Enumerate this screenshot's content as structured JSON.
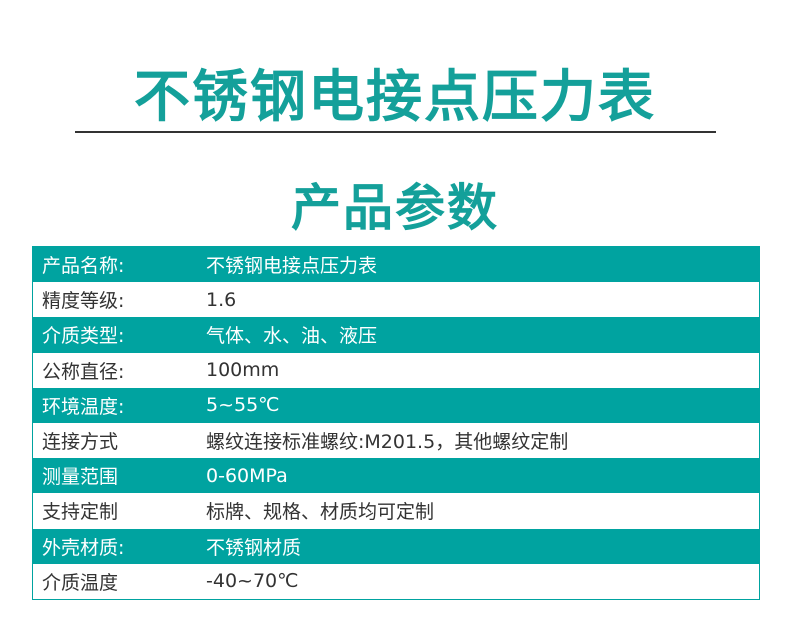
{
  "title": "不锈钢电接点压力表",
  "subtitle": "产品参数",
  "colors": {
    "accent": "#00a3a0"
  },
  "rows": [
    {
      "label": "产品名称:",
      "value": "不锈钢电接点压力表"
    },
    {
      "label": "精度等级:",
      "value": "1.6"
    },
    {
      "label": "介质类型:",
      "value": "气体、水、油、液压"
    },
    {
      "label": "公称直径:",
      "value": "100mm"
    },
    {
      "label": "环境温度:",
      "value": "5~55℃"
    },
    {
      "label": "连接方式",
      "value": "螺纹连接标准螺纹:M201.5，其他螺纹定制"
    },
    {
      "label": "测量范围",
      "value": "0-60MPa"
    },
    {
      "label": "支持定制",
      "value": "标牌、规格、材质均可定制"
    },
    {
      "label": "外壳材质:",
      "value": "不锈钢材质"
    },
    {
      "label": "介质温度",
      "value": "-40~70℃"
    }
  ]
}
